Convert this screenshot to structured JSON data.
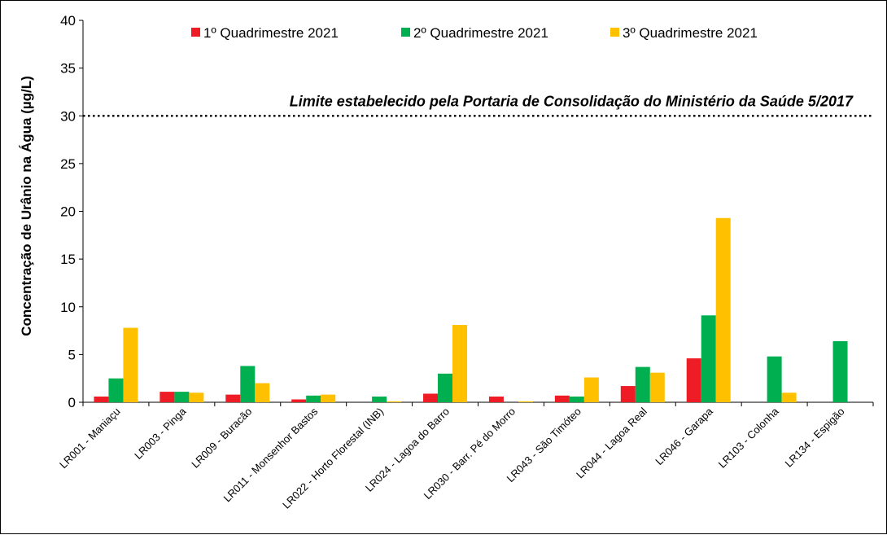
{
  "chart_data": {
    "type": "bar",
    "title": "",
    "xlabel": "",
    "ylabel": "Concentração de Urânio na Água (µg/L)",
    "ylim": [
      0,
      40
    ],
    "yticks": [
      "0",
      "5",
      "10",
      "15",
      "20",
      "25",
      "30",
      "35",
      "40"
    ],
    "grid": false,
    "legend_position": "top",
    "categories": [
      "LR001 - Maniaçu",
      "LR003 - Pinga",
      "LR009 - Buracão",
      "LR011 - Monsenhor Bastos",
      "LR022 - Horto Florestal (INB)",
      "LR024 - Lagoa do Barro",
      "LR030 - Barr. Pé do Morro",
      "LR043 - São Timóteo",
      "LR044 - Lagoa Real",
      "LR046 - Garapa",
      "LR103 - Colonha",
      "LR134 - Espigão"
    ],
    "series": [
      {
        "name": "1º Quadrimestre 2021",
        "color": "#ee1c25",
        "values": [
          0.6,
          1.1,
          0.8,
          0.3,
          null,
          0.9,
          0.6,
          0.7,
          1.7,
          4.6,
          null,
          null
        ]
      },
      {
        "name": "2º Quadrimestre 2021",
        "color": "#00b050",
        "values": [
          2.5,
          1.1,
          3.8,
          0.7,
          0.6,
          3.0,
          null,
          0.6,
          3.7,
          9.1,
          4.8,
          6.4
        ]
      },
      {
        "name": "3º Quadrimestre 2021",
        "color": "#ffc000",
        "values": [
          7.8,
          1.0,
          2.0,
          0.8,
          0.1,
          8.1,
          0.1,
          2.6,
          3.1,
          19.3,
          1.0,
          null
        ]
      }
    ],
    "reference_line": {
      "value": 30,
      "label": "Limite estabelecido pela Portaria de Consolidação do Ministério da Saúde 5/2017"
    }
  }
}
